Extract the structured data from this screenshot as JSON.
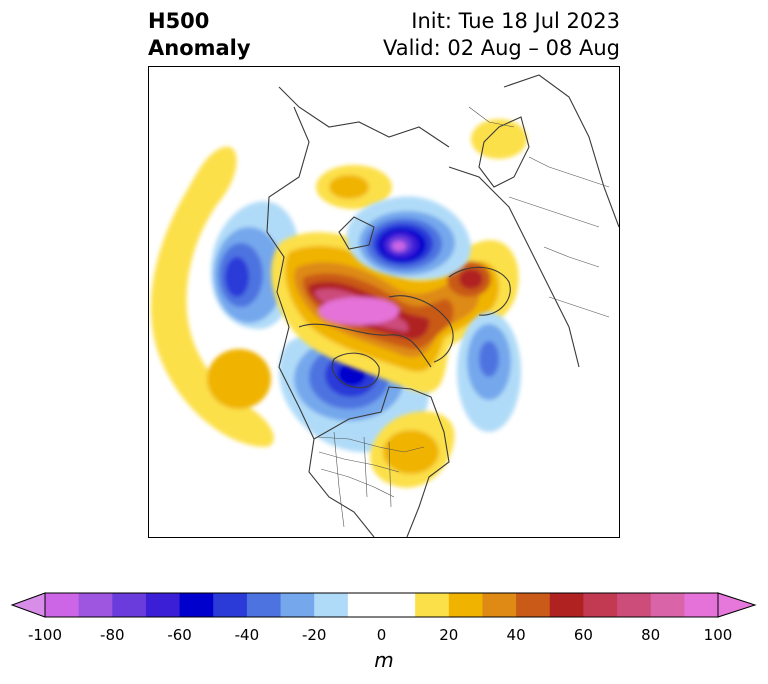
{
  "title": {
    "left_line1": "H500",
    "left_line2": "Anomaly",
    "init": "Init: Tue 18 Jul 2023",
    "valid": "Valid: 02 Aug – 08 Aug"
  },
  "colorbar": {
    "unit_label": "m",
    "ticks": [
      "-100",
      "-80",
      "-60",
      "-40",
      "-20",
      "0",
      "20",
      "40",
      "60",
      "80",
      "100"
    ],
    "levels": [
      -100,
      -90,
      -80,
      -70,
      -60,
      -50,
      -40,
      -30,
      -20,
      -10,
      10,
      20,
      30,
      40,
      50,
      60,
      70,
      80,
      90,
      100
    ],
    "colors": [
      "#cc66e6",
      "#9e55e0",
      "#6b3cdc",
      "#3a1fd6",
      "#0000cc",
      "#2a3bd8",
      "#4d73e0",
      "#74a7ec",
      "#b0dbf8",
      "#ffffff",
      "#fce04a",
      "#f0b400",
      "#de8a14",
      "#c95a18",
      "#b02222",
      "#c23a52",
      "#cc4c7a",
      "#d964a8",
      "#e472d8"
    ],
    "extend_low_color": "#d88ee8",
    "extend_high_color": "#e678dc"
  },
  "map": {
    "projection": "polar stereographic (Northern Hemisphere)",
    "features": [
      {
        "sign": "negative",
        "anomaly_min": -100,
        "location": "North Pole / Arctic Ocean"
      },
      {
        "sign": "positive",
        "anomaly_max": 100,
        "location": "Canadian Arctic Archipelago to Greenland"
      },
      {
        "sign": "negative",
        "anomaly_min": -60,
        "location": "Hudson Bay / central Canada"
      },
      {
        "sign": "negative",
        "anomaly_min": -60,
        "location": "Siberia / Bering region"
      },
      {
        "sign": "positive",
        "anomaly_max": 60,
        "location": "Scandinavia / northwest Russia"
      },
      {
        "sign": "negative",
        "anomaly_min": -40,
        "location": "North Atlantic"
      },
      {
        "sign": "positive",
        "anomaly_max": 30,
        "location": "North Pacific"
      },
      {
        "sign": "positive",
        "anomaly_max": 30,
        "location": "eastern United States"
      },
      {
        "sign": "positive",
        "anomaly_max": 20,
        "location": "central Asia"
      }
    ]
  }
}
